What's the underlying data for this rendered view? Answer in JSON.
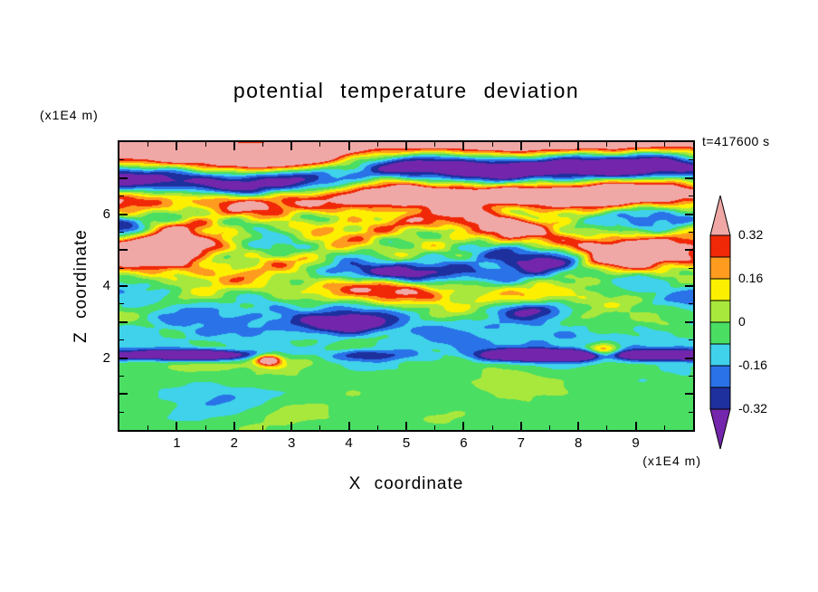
{
  "chart_data": {
    "type": "heatmap",
    "subtype": "filled-contour",
    "title": "potential temperature deviation",
    "xlabel": "X coordinate",
    "ylabel": "Z coordinate",
    "x_unit": "(x1E4 m)",
    "z_unit": "(x1E4 m)",
    "time_annotation": "t=417600 s",
    "x_range": [
      0,
      10
    ],
    "z_range": [
      0,
      8
    ],
    "x_tick_labels": [
      "1",
      "2",
      "3",
      "4",
      "5",
      "6",
      "7",
      "8",
      "9"
    ],
    "z_tick_labels": [
      "2",
      "4",
      "6"
    ],
    "contour_interval": 0.08,
    "contour_levels": [
      -0.32,
      -0.24,
      -0.16,
      -0.08,
      0,
      0.08,
      0.16,
      0.24,
      0.32
    ],
    "colorbar_labels": [
      "0.32",
      "0.16",
      "0",
      "-0.16",
      "-0.32"
    ],
    "palette": {
      "over": "#f0a8a6",
      "bands_high_to_low": [
        "#f02808",
        "#ff9c20",
        "#fcf000",
        "#a8e83c",
        "#4ade63",
        "#3fd2ea",
        "#2a72e8",
        "#1e2f9e"
      ],
      "under": "#7326ab"
    },
    "field_model": {
      "description": "procedural approximation of the turbulent potential-temperature deviation field: green boundary layer below z=2, thin negative sheet near z=2.1, turbulent cyan/green/orange interior, strong red/orange streaks near z=5-6, alternating salmon/purple gravity-wave bands aloft",
      "gain": 1.4,
      "base_profile": [
        [
          0,
          -0.03
        ],
        [
          1.8,
          -0.04
        ],
        [
          2.3,
          -0.1
        ],
        [
          3.0,
          -0.09
        ],
        [
          4.0,
          -0.05
        ],
        [
          4.8,
          0.02
        ],
        [
          5.6,
          0.06
        ],
        [
          6.2,
          0.1
        ],
        [
          8,
          0.12
        ]
      ],
      "amp_profile": [
        [
          0,
          0.055
        ],
        [
          1.6,
          0.065
        ],
        [
          2.0,
          0.15
        ],
        [
          2.6,
          0.15
        ],
        [
          3.5,
          0.22
        ],
        [
          4.4,
          0.3
        ],
        [
          5.0,
          0.4
        ],
        [
          5.8,
          0.42
        ],
        [
          6.4,
          0.25
        ],
        [
          8,
          0.2
        ]
      ],
      "waves": [
        {
          "a": 0.42,
          "kx": 0.65,
          "px": 0.3,
          "kz": 2.4,
          "pz": 1.2,
          "w": 0.9
        },
        {
          "a": 0.3,
          "kx": 1.25,
          "px": 2.4,
          "kz": 3.1,
          "pz": 4.1,
          "w": 0.6
        },
        {
          "a": 0.22,
          "kx": 2.1,
          "px": 5.2,
          "kz": 4.2,
          "pz": 2.0,
          "w": 0.45
        },
        {
          "a": 0.16,
          "kx": 3.3,
          "px": 1.1,
          "kz": 6.3,
          "pz": 5.1,
          "w": 0.3
        },
        {
          "a": 0.12,
          "kx": 4.9,
          "px": 3.7,
          "kz": 9.0,
          "pz": 0.6,
          "w": 0.22
        },
        {
          "a": 0.09,
          "kx": 7.0,
          "px": 0.9,
          "kz": 13.0,
          "pz": 3.0,
          "w": 0.15
        }
      ],
      "upper_wave": {
        "z0": 5.7,
        "ramp": 1.0,
        "amp": 0.5,
        "kz": 3.9,
        "phase": -0.77,
        "a1": 0.9,
        "kx1": 0.5,
        "p1": 1.1,
        "a2": 0.35,
        "kx2": 1.4,
        "p2": 3.9
      },
      "sheet": {
        "z": 2.08,
        "sigma": 0.15,
        "amp": -0.55,
        "c0": 0.55,
        "c1": 0.45,
        "kx1": 0.8,
        "p1": 1.2,
        "c2": 0.3,
        "kx2": 2.2,
        "p2": 4.5
      },
      "blobs": [
        {
          "x": 4.6,
          "z": 3.85,
          "sx": 1.3,
          "sz": 0.42,
          "a": 0.5
        },
        {
          "x": 0.9,
          "z": 5.1,
          "sx": 0.9,
          "sz": 0.5,
          "a": 0.45
        },
        {
          "x": 8.7,
          "z": 4.95,
          "sx": 0.75,
          "sz": 0.5,
          "a": 0.48
        },
        {
          "x": 4.0,
          "z": 2.95,
          "sx": 0.8,
          "sz": 0.3,
          "a": -0.42
        },
        {
          "x": 7.2,
          "z": 3.35,
          "sx": 0.7,
          "sz": 0.28,
          "a": -0.38
        },
        {
          "x": 4.7,
          "z": 4.35,
          "sx": 1.2,
          "sz": 0.3,
          "a": -0.45
        },
        {
          "x": 2.6,
          "z": 1.95,
          "sx": 0.22,
          "sz": 0.15,
          "a": 0.55
        },
        {
          "x": 8.45,
          "z": 2.2,
          "sx": 0.3,
          "sz": 0.22,
          "a": 0.5
        },
        {
          "x": 1.6,
          "z": 0.9,
          "sx": 0.7,
          "sz": 0.45,
          "a": -0.1
        },
        {
          "x": 5.0,
          "z": 0.8,
          "sx": 0.8,
          "sz": 0.4,
          "a": -0.09
        },
        {
          "x": 3.1,
          "z": 0.5,
          "sx": 0.6,
          "sz": 0.3,
          "a": 0.08
        },
        {
          "x": 6.9,
          "z": 1.3,
          "sx": 0.6,
          "sz": 0.35,
          "a": 0.09
        }
      ]
    }
  }
}
